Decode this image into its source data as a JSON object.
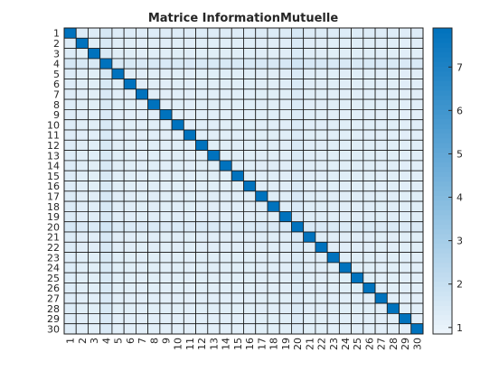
{
  "chart_data": {
    "type": "heatmap",
    "title": "Matrice InformationMutuelle",
    "xlabel": "",
    "ylabel": "",
    "x_ticks": [
      "1",
      "2",
      "3",
      "4",
      "5",
      "6",
      "7",
      "8",
      "9",
      "10",
      "11",
      "12",
      "13",
      "14",
      "15",
      "16",
      "17",
      "18",
      "19",
      "20",
      "21",
      "22",
      "23",
      "24",
      "25",
      "26",
      "27",
      "28",
      "29",
      "30"
    ],
    "y_ticks": [
      "1",
      "2",
      "3",
      "4",
      "5",
      "6",
      "7",
      "8",
      "9",
      "10",
      "11",
      "12",
      "13",
      "14",
      "15",
      "16",
      "17",
      "18",
      "19",
      "20",
      "21",
      "22",
      "23",
      "24",
      "25",
      "26",
      "27",
      "28",
      "29",
      "30"
    ],
    "diagonal_value": 7.9,
    "off_diagonal_base": 1.3,
    "column_weights": [
      1.45,
      1.25,
      1.25,
      1.75,
      1.25,
      1.25,
      1.2,
      1.25,
      1.2,
      1.25,
      1.2,
      1.25,
      1.25,
      1.25,
      1.25,
      1.25,
      1.3,
      1.3,
      1.3,
      1.65,
      1.3,
      1.3,
      1.25,
      1.25,
      1.25,
      1.25,
      1.2,
      1.25,
      1.2,
      1.2
    ],
    "colorbar": {
      "min": 0.85,
      "max": 7.9,
      "ticks": [
        "1",
        "2",
        "3",
        "4",
        "5",
        "6",
        "7"
      ],
      "colormap": [
        "#eef5fb",
        "#0072bd"
      ]
    },
    "grid_color": "#1a1a1a"
  }
}
